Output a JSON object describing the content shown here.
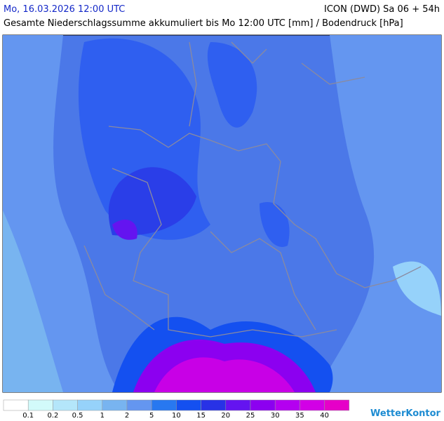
{
  "header": {
    "datetime": "Mo, 16.03.2026 12:00 UTC",
    "model": "ICON (DWD) Sa 06 + 54h",
    "subtitle": "Gesamte Niederschlagssumme akkumuliert bis Mo 12:00 UTC [mm] / Bodendruck [hPa]"
  },
  "legend": {
    "labels": [
      "0.1",
      "0.2",
      "0.5",
      "1",
      "2",
      "5",
      "10",
      "15",
      "20",
      "25",
      "30",
      "35",
      "40"
    ],
    "colors": [
      "#ffffff",
      "#d2fafa",
      "#b4e6fa",
      "#96d2fa",
      "#78b4f0",
      "#6496f0",
      "#2878f0",
      "#1450f0",
      "#2832e6",
      "#6414f0",
      "#8c00f0",
      "#b400f0",
      "#d200e6",
      "#e600c8"
    ]
  },
  "brand": "WetterKontor"
}
